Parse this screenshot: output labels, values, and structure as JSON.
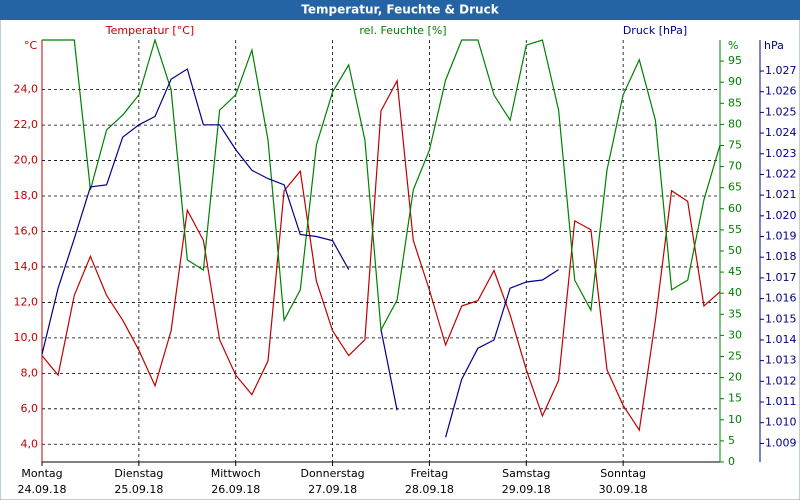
{
  "chart_data": {
    "type": "line",
    "title": "Temperatur, Feuchte & Druck",
    "x": [
      0,
      4,
      8,
      12,
      16,
      20,
      24,
      28,
      32,
      36,
      40,
      44,
      48,
      52,
      56,
      60,
      64,
      68,
      72,
      76,
      80,
      84,
      88,
      92,
      96,
      100,
      104,
      108,
      112,
      116,
      120,
      124,
      128,
      132,
      136,
      140,
      144,
      148,
      152,
      156,
      160,
      164,
      168
    ],
    "xlim": [
      0,
      168
    ],
    "xticks": [
      {
        "value": 0,
        "label": "Montag"
      },
      {
        "value": 24,
        "label": "Dienstag"
      },
      {
        "value": 48,
        "label": "Mittwoch"
      },
      {
        "value": 72,
        "label": "Donnerstag"
      },
      {
        "value": 96,
        "label": "Freitag"
      },
      {
        "value": 120,
        "label": "Samstag"
      },
      {
        "value": 144,
        "label": "Sonntag"
      }
    ],
    "xtick_dates": [
      "24.09.18",
      "25.09.18",
      "26.09.18",
      "27.09.18",
      "28.09.18",
      "29.09.18",
      "30.09.18"
    ],
    "grid": true,
    "y_unit": "°C",
    "y2_unit": "%",
    "y3_unit": "hPa",
    "ylim": [
      3.0,
      26.8
    ],
    "yticks": [
      {
        "value": 4,
        "label": "4,0"
      },
      {
        "value": 6,
        "label": "6,0"
      },
      {
        "value": 8,
        "label": "8,0"
      },
      {
        "value": 10,
        "label": "10,0"
      },
      {
        "value": 12,
        "label": "12,0"
      },
      {
        "value": 14,
        "label": "14,0"
      },
      {
        "value": 16,
        "label": "16,0"
      },
      {
        "value": 18,
        "label": "18,0"
      },
      {
        "value": 20,
        "label": "20,0"
      },
      {
        "value": 22,
        "label": "22,0"
      },
      {
        "value": 24,
        "label": "24,0"
      }
    ],
    "y2lim": [
      0,
      100
    ],
    "y2ticks": [
      0,
      5,
      10,
      15,
      20,
      25,
      30,
      35,
      40,
      45,
      50,
      55,
      60,
      65,
      70,
      75,
      80,
      85,
      90,
      95
    ],
    "y3lim": [
      1.0081,
      1.0285
    ],
    "y3ticks": [
      1.009,
      {
        "value": 1.01,
        "label": "1.010"
      },
      1.011,
      1.012,
      1.013,
      1.014,
      1.015,
      1.016,
      1.017,
      1.018,
      1.019,
      {
        "value": 1.02,
        "label": "1.020"
      },
      1.021,
      1.022,
      1.023,
      1.024,
      1.025,
      1.026,
      1.027
    ],
    "series": [
      {
        "name": "Temperatur [°C]",
        "color": "#c00000",
        "axis": "y",
        "values": [
          9.0,
          7.9,
          12.4,
          14.6,
          12.4,
          11.0,
          9.3,
          7.3,
          10.4,
          17.2,
          15.5,
          9.9,
          7.9,
          6.8,
          8.7,
          18.3,
          19.4,
          13.2,
          10.4,
          9.0,
          9.9,
          22.8,
          24.5,
          15.5,
          12.7,
          9.6,
          11.8,
          12.1,
          13.8,
          11.3,
          8.2,
          5.6,
          7.6,
          16.6,
          16.1,
          8.2,
          6.2,
          4.8,
          11.0,
          18.3,
          17.7,
          11.8,
          12.6
        ]
      },
      {
        "name": "rel. Feuchte [%]",
        "color": "#008000",
        "axis": "y2",
        "values": [
          100,
          100,
          100,
          64.5,
          78.7,
          82.2,
          87.0,
          100,
          88.2,
          47.9,
          45.5,
          83.4,
          87.0,
          97.6,
          76.3,
          33.6,
          40.8,
          75.1,
          87.7,
          94.1,
          76.3,
          31.3,
          38.4,
          64.5,
          73.9,
          90.5,
          100,
          100,
          87.0,
          81.0,
          98.8,
          100,
          83.4,
          43.1,
          36.0,
          69.2,
          87.0,
          95.3,
          81.0,
          40.8,
          43.1,
          62.1,
          75.1
        ]
      },
      {
        "name": "Druck [hPa]",
        "color": "#00008b",
        "axis": "y3",
        "values": [
          1.0133,
          1.0165,
          1.0189,
          1.0214,
          1.0215,
          1.0238,
          1.0244,
          1.0248,
          1.0266,
          1.0271,
          1.0244,
          1.0244,
          1.0232,
          1.0222,
          1.0218,
          1.0215,
          1.0191,
          1.019,
          1.0188,
          1.0174,
          null,
          1.0145,
          1.0106,
          null,
          null,
          1.0093,
          1.0121,
          1.0136,
          1.014,
          1.0165,
          1.0168,
          1.0169,
          1.0174,
          null,
          null,
          null,
          null,
          null,
          null,
          null,
          null,
          null,
          null
        ]
      }
    ]
  }
}
